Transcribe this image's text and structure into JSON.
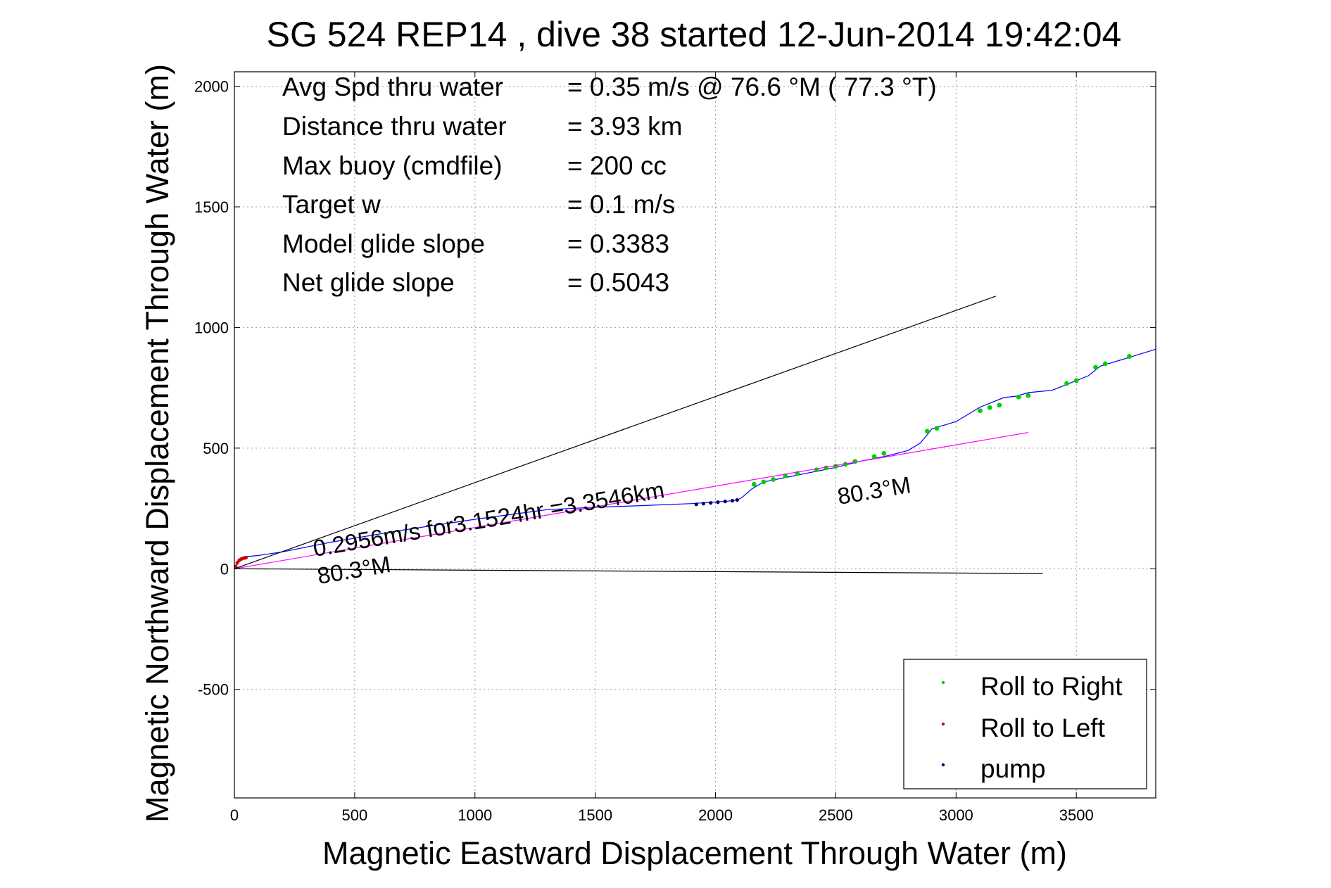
{
  "chart_data": {
    "type": "line",
    "title": "SG 524   REP14  , dive 38 started 12-Jun-2014 19:42:04",
    "xlabel": "Magnetic Eastward Displacement Through Water (m)",
    "ylabel": "Magnetic Northward Displacement Through Water (m)",
    "xlim": [
      0,
      3830
    ],
    "ylim": [
      -950,
      2060
    ],
    "x_ticks": [
      0,
      500,
      1000,
      1500,
      2000,
      2500,
      3000,
      3500
    ],
    "y_ticks": [
      -500,
      0,
      500,
      1000,
      1500,
      2000
    ],
    "grid": true,
    "summary": [
      {
        "label": "Avg Spd thru water",
        "value": "=  0.35 m/s @  76.6 °M ( 77.3 °T)"
      },
      {
        "label": "Distance thru water",
        "value": "=  3.93 km"
      },
      {
        "label": "Max buoy (cmdfile)",
        "value": "= 200 cc"
      },
      {
        "label": "Target w",
        "value": "= 0.1 m/s"
      },
      {
        "label": "Model glide slope",
        "value": "= 0.3383"
      },
      {
        "label": "Net glide slope",
        "value": "= 0.5043"
      }
    ],
    "annotations": {
      "current_speed": "0.2956m/s for3.1524hr =3.3546km",
      "current_heading": "80.3°M",
      "heading_end": "80.3°M"
    },
    "series": [
      {
        "name": "",
        "color": "#0000ff",
        "x": [
          0,
          20,
          50,
          100,
          200,
          400,
          700,
          1000,
          1300,
          1500,
          1700,
          1900,
          2050,
          2090,
          2110,
          2150,
          2200,
          2300,
          2400,
          2500,
          2600,
          2700,
          2800,
          2850,
          2880,
          2900,
          2950,
          3000,
          3050,
          3100,
          3150,
          3200,
          3250,
          3300,
          3400,
          3450,
          3500,
          3550,
          3600,
          3700,
          3830
        ],
        "y": [
          0,
          30,
          50,
          55,
          70,
          110,
          160,
          205,
          245,
          255,
          262,
          270,
          280,
          285,
          295,
          330,
          360,
          380,
          400,
          420,
          445,
          465,
          490,
          520,
          555,
          580,
          595,
          610,
          640,
          670,
          690,
          710,
          715,
          730,
          740,
          760,
          780,
          800,
          840,
          870,
          910
        ]
      },
      {
        "name": "Roll to Right",
        "color": "#00d000",
        "x": [
          2160,
          2200,
          2240,
          2290,
          2340,
          2420,
          2460,
          2500,
          2540,
          2580,
          2660,
          2700,
          2880,
          2920,
          3100,
          3140,
          3180,
          3260,
          3300,
          3460,
          3500,
          3580,
          3620,
          3720
        ],
        "y": [
          350,
          360,
          370,
          385,
          395,
          410,
          418,
          425,
          433,
          445,
          465,
          478,
          570,
          582,
          655,
          668,
          678,
          712,
          718,
          768,
          780,
          835,
          850,
          880
        ]
      },
      {
        "name": "Roll to Left",
        "color": "#d00000",
        "x": [
          5,
          12,
          20,
          28,
          35,
          42,
          48
        ],
        "y": [
          10,
          25,
          35,
          40,
          43,
          45,
          46
        ]
      },
      {
        "name": "pump",
        "color": "#000060",
        "x": [
          1920,
          1950,
          1980,
          2010,
          2040,
          2070,
          2090
        ],
        "y": [
          267,
          270,
          273,
          276,
          279,
          282,
          285
        ]
      },
      {
        "name": "",
        "color": "#ff00ff",
        "x": [
          0,
          3300
        ],
        "y": [
          0,
          565
        ]
      },
      {
        "name": "",
        "color": "#000000",
        "x": [
          0,
          3165
        ],
        "y": [
          0,
          1130
        ]
      },
      {
        "name": "",
        "color": "#000000",
        "x": [
          0,
          3360
        ],
        "y": [
          0,
          -20
        ]
      }
    ],
    "legend": {
      "placement": "bottom-right",
      "entries": [
        "Roll to Right",
        "Roll to Left",
        "pump"
      ]
    }
  }
}
